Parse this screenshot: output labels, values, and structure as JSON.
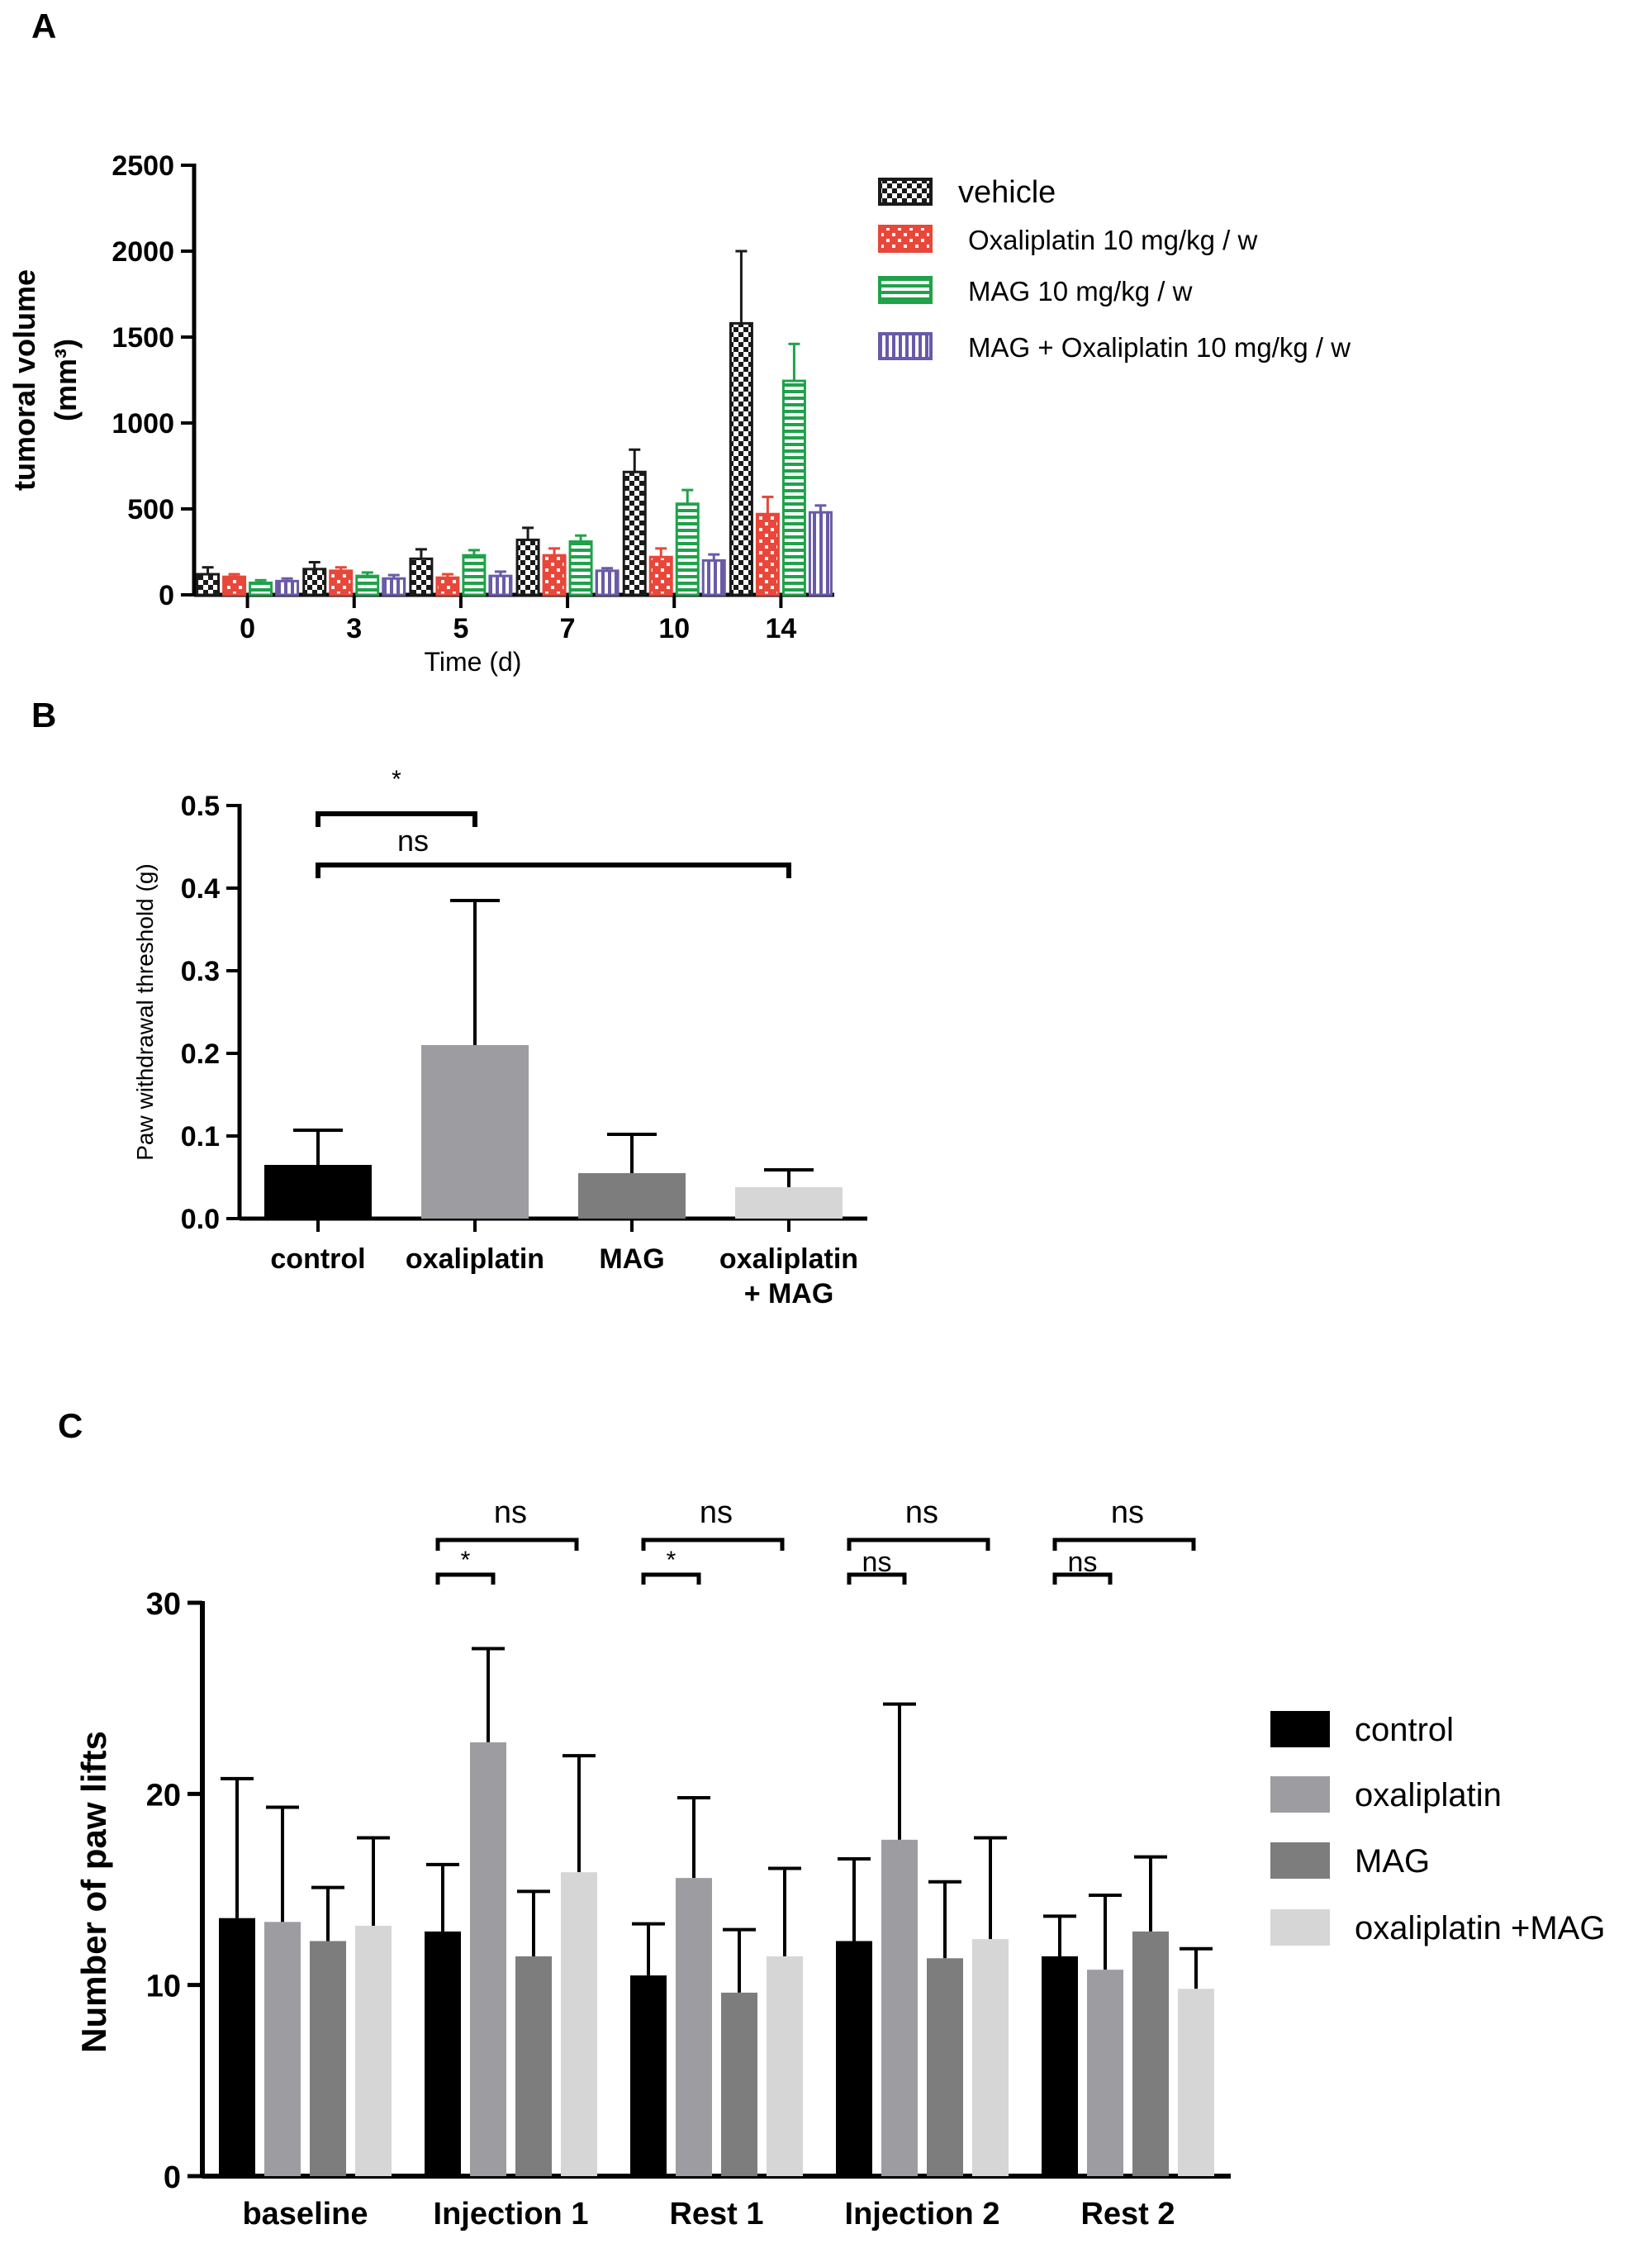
{
  "panel_labels": [
    "A",
    "B",
    "C"
  ],
  "colors": {
    "vehicle": "#1a1a1a",
    "oxaliplatin_a": "#e8473a",
    "mag_a": "#1fa24a",
    "combo_a": "#6a5aa8",
    "control": "#000000",
    "oxaliplatin": "#9d9da1",
    "mag": "#7d7d7d",
    "combo": "#d6d6d6"
  },
  "chart_data": [
    {
      "panel": "A",
      "type": "bar",
      "xlabel": "Time (d)",
      "ylabel_main": "tumoral volume",
      "ylabel_unit": "(mm³)",
      "ylim": [
        0,
        2500
      ],
      "yticks": [
        0,
        500,
        1000,
        1500,
        2000,
        2500
      ],
      "categories": [
        "0",
        "3",
        "5",
        "7",
        "10",
        "14"
      ],
      "legend_position": "right",
      "series": [
        {
          "name": "vehicle",
          "values": [
            120,
            150,
            210,
            320,
            715,
            1580
          ],
          "errors": [
            40,
            40,
            55,
            70,
            130,
            420
          ]
        },
        {
          "name": "Oxaliplatin 10 mg/kg / w",
          "values": [
            105,
            140,
            100,
            230,
            220,
            470
          ],
          "errors": [
            15,
            20,
            20,
            40,
            50,
            100
          ]
        },
        {
          "name": "MAG 10 mg/kg / w",
          "values": [
            70,
            110,
            230,
            310,
            530,
            1245
          ],
          "errors": [
            15,
            20,
            30,
            35,
            80,
            215
          ]
        },
        {
          "name": "MAG + Oxaliplatin 10 mg/kg / w",
          "values": [
            80,
            95,
            110,
            140,
            200,
            480
          ],
          "errors": [
            15,
            20,
            25,
            15,
            35,
            40
          ]
        }
      ]
    },
    {
      "panel": "B",
      "type": "bar",
      "ylabel": "Paw withdrawal threshold (g)",
      "ylim": [
        0,
        0.5
      ],
      "yticks": [
        "0.0",
        "0.1",
        "0.2",
        "0.3",
        "0.4",
        "0.5"
      ],
      "categories": [
        "control",
        "oxaliplatin",
        "MAG",
        "oxaliplatin + MAG"
      ],
      "category_lines": [
        [
          "control"
        ],
        [
          "oxaliplatin"
        ],
        [
          "MAG"
        ],
        [
          "oxaliplatin",
          "+ MAG"
        ]
      ],
      "values": [
        0.065,
        0.21,
        0.055,
        0.038
      ],
      "errors": [
        0.042,
        0.175,
        0.047,
        0.021
      ],
      "significance": [
        {
          "from": 0,
          "to": 1,
          "label": "*"
        },
        {
          "from": 0,
          "to": 3,
          "label": "ns"
        }
      ]
    },
    {
      "panel": "C",
      "type": "bar",
      "ylabel": "Number of paw lifts",
      "ylim": [
        0,
        30
      ],
      "yticks": [
        0,
        10,
        20,
        30
      ],
      "categories": [
        "baseline",
        "Injection 1",
        "Rest 1",
        "Injection 2",
        "Rest 2"
      ],
      "legend_position": "right",
      "series": [
        {
          "name": "control",
          "values": [
            13.5,
            12.8,
            10.5,
            12.3,
            11.5
          ],
          "errors": [
            7.3,
            3.5,
            2.7,
            4.3,
            2.1
          ]
        },
        {
          "name": "oxaliplatin",
          "values": [
            13.3,
            22.7,
            15.6,
            17.6,
            10.8
          ],
          "errors": [
            6.0,
            4.9,
            4.2,
            7.1,
            3.9
          ]
        },
        {
          "name": "MAG",
          "values": [
            12.3,
            11.5,
            9.6,
            11.4,
            12.8
          ],
          "errors": [
            2.8,
            3.4,
            3.3,
            4.0,
            3.9
          ]
        },
        {
          "name": "oxaliplatin +MAG",
          "values": [
            13.1,
            15.9,
            11.5,
            12.4,
            9.8
          ],
          "errors": [
            4.6,
            6.1,
            4.6,
            5.3,
            2.1
          ]
        }
      ],
      "significance": [
        {
          "group": 0,
          "outer": "ns",
          "inner": "*"
        },
        {
          "group": 1,
          "outer": "ns",
          "inner": "*"
        },
        {
          "group": 2,
          "outer": "ns",
          "inner": "ns"
        },
        {
          "group": 3,
          "outer": "ns",
          "inner": "ns"
        }
      ]
    }
  ]
}
